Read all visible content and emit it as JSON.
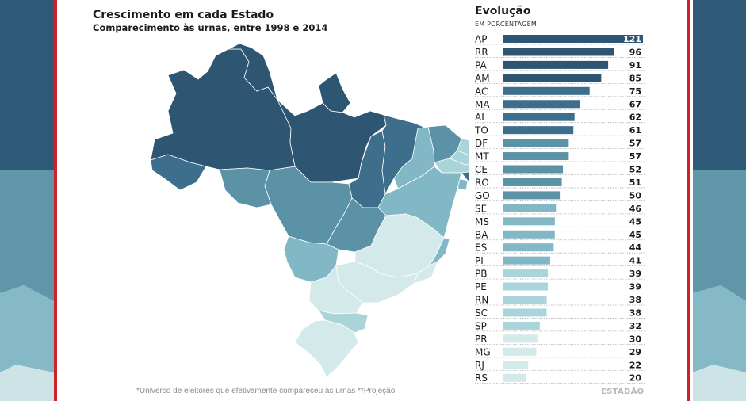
{
  "header": {
    "title": "Crescimento em cada Estado",
    "subtitle": "Comparecimento às urnas, entre 1998 e 2014"
  },
  "footnote": "*Universo de eleitores que efetivamente compareceu às urnas **Projeção",
  "logo": "ESTADÃO",
  "chart_data": {
    "type": "bar",
    "orientation": "horizontal",
    "title": "Evolução",
    "subtitle": "EM PORCENTAGEM",
    "categories": [
      "AP",
      "RR",
      "PA",
      "AM",
      "AC",
      "MA",
      "AL",
      "TO",
      "DF",
      "MT",
      "CE",
      "RO",
      "GO",
      "SE",
      "MS",
      "BA",
      "ES",
      "PI",
      "PB",
      "PE",
      "RN",
      "SC",
      "SP",
      "PR",
      "MG",
      "RJ",
      "RS"
    ],
    "values": [
      121,
      96,
      91,
      85,
      75,
      67,
      62,
      61,
      57,
      57,
      52,
      51,
      50,
      46,
      45,
      45,
      44,
      41,
      39,
      39,
      38,
      38,
      32,
      30,
      29,
      22,
      20
    ],
    "xlim": [
      0,
      121
    ],
    "colors": {
      "darkest": "#2e5673",
      "dark": "#3d6f8c",
      "medium": "#5b92a6",
      "light": "#82b8c5",
      "lighter": "#a9d4d9",
      "lightest": "#d3e9ea",
      "value_label_inverse": "#ffffff",
      "value_label": "#1a1a1a",
      "dotted_line": "#b0b0b0"
    }
  }
}
